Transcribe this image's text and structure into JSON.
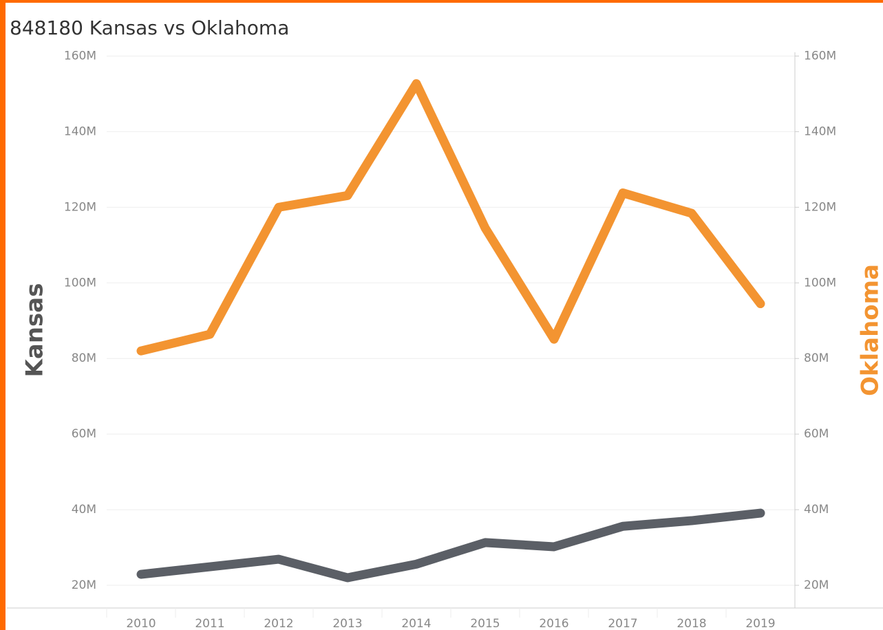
{
  "chart_data": {
    "type": "line",
    "title": "848180 Kansas vs Oklahoma",
    "categories": [
      "2010",
      "2011",
      "2012",
      "2013",
      "2014",
      "2015",
      "2016",
      "2017",
      "2018",
      "2019"
    ],
    "series": [
      {
        "name": "Kansas",
        "color": "#5b5f66",
        "values": [
          22.9,
          24.9,
          26.9,
          22.0,
          25.6,
          31.3,
          30.2,
          35.6,
          37.1,
          39.1
        ]
      },
      {
        "name": "Oklahoma",
        "color": "#f39431",
        "axis": "y2",
        "values": [
          82.0,
          86.4,
          120.0,
          123.1,
          152.7,
          114.5,
          85.1,
          123.8,
          118.4,
          94.5
        ]
      }
    ],
    "ylabel": "Kansas",
    "y2label": "Oklahoma",
    "ylim": [
      14,
      161
    ],
    "yticks": [
      {
        "value": 20,
        "label": "20M"
      },
      {
        "value": 40,
        "label": "40M"
      },
      {
        "value": 60,
        "label": "60M"
      },
      {
        "value": 80,
        "label": "80M"
      },
      {
        "value": 100,
        "label": "100M"
      },
      {
        "value": 120,
        "label": "120M"
      },
      {
        "value": 140,
        "label": "140M"
      },
      {
        "value": 160,
        "label": "160M"
      }
    ],
    "y2lim": [
      14,
      161
    ],
    "y2ticks": [
      {
        "value": 20,
        "label": "20M"
      },
      {
        "value": 40,
        "label": "40M"
      },
      {
        "value": 60,
        "label": "60M"
      },
      {
        "value": 80,
        "label": "80M"
      },
      {
        "value": 100,
        "label": "100M"
      },
      {
        "value": 120,
        "label": "120M"
      },
      {
        "value": 140,
        "label": "140M"
      },
      {
        "value": 160,
        "label": "160M"
      }
    ],
    "grid": true
  }
}
